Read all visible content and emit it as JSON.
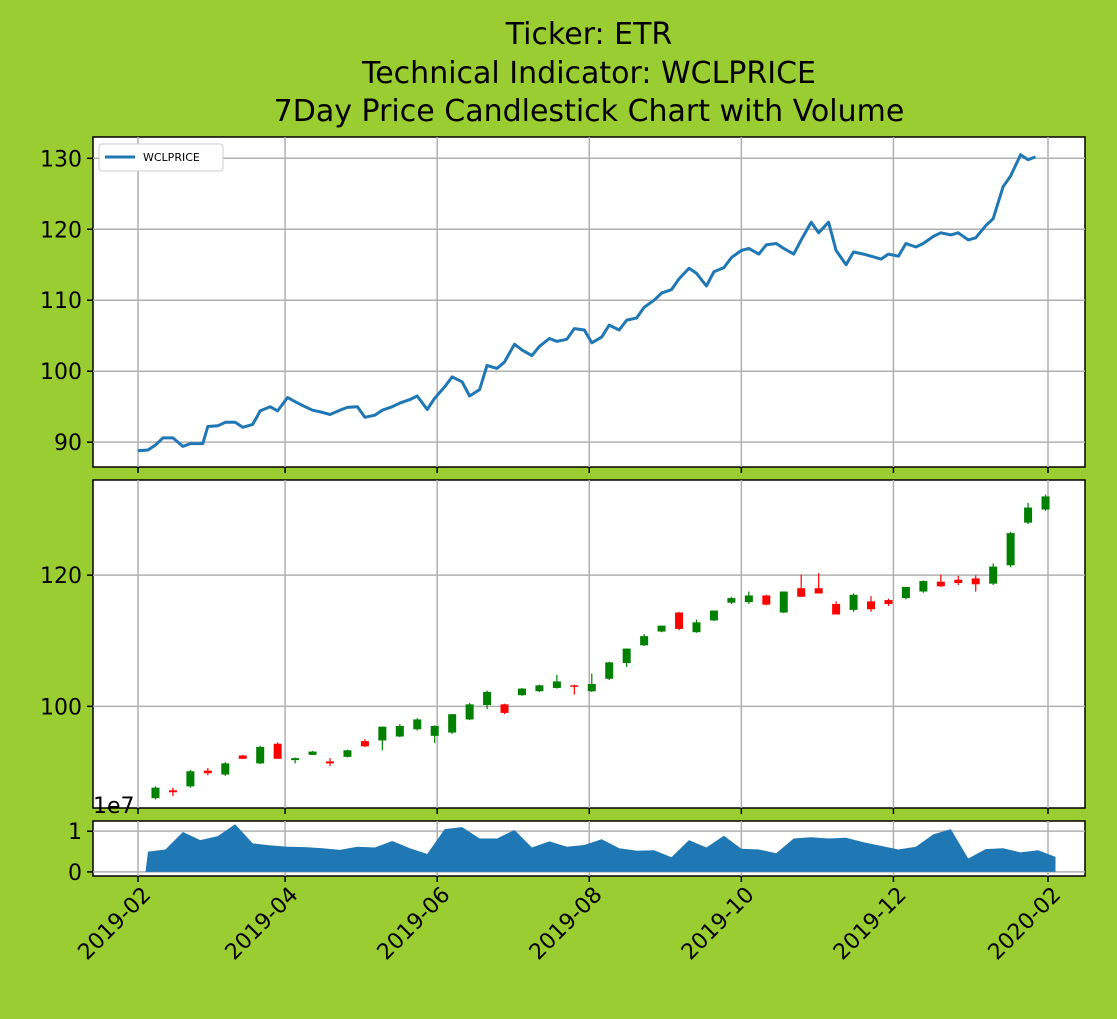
{
  "title_lines": [
    "Ticker: ETR",
    "Technical Indicator: WCLPRICE",
    "7Day Price Candlestick Chart with Volume"
  ],
  "colors": {
    "background": "#9acd32",
    "line": "#1f77b4",
    "up": "#008000",
    "down": "#ff0000",
    "volume": "#1f77b4"
  },
  "chart_data": [
    {
      "type": "line",
      "panel": "indicator",
      "legend": {
        "label": "WCLPRICE",
        "placement": "upper-left"
      },
      "x_axis": "date",
      "ylim": [
        86.5,
        133
      ],
      "yticks": [
        90,
        100,
        110,
        120,
        130
      ],
      "grid": true,
      "points": [
        [
          "2019-02-01",
          88.8
        ],
        [
          "2019-02-05",
          88.9
        ],
        [
          "2019-02-08",
          89.6
        ],
        [
          "2019-02-11",
          90.6
        ],
        [
          "2019-02-15",
          90.6
        ],
        [
          "2019-02-19",
          89.4
        ],
        [
          "2019-02-22",
          89.8
        ],
        [
          "2019-02-27",
          89.8
        ],
        [
          "2019-03-01",
          92.2
        ],
        [
          "2019-03-05",
          92.3
        ],
        [
          "2019-03-08",
          92.8
        ],
        [
          "2019-03-12",
          92.8
        ],
        [
          "2019-03-15",
          92.1
        ],
        [
          "2019-03-19",
          92.5
        ],
        [
          "2019-03-22",
          94.4
        ],
        [
          "2019-03-26",
          95.0
        ],
        [
          "2019-03-29",
          94.4
        ],
        [
          "2019-04-02",
          96.3
        ],
        [
          "2019-04-05",
          95.7
        ],
        [
          "2019-04-09",
          95.0
        ],
        [
          "2019-04-12",
          94.5
        ],
        [
          "2019-04-16",
          94.2
        ],
        [
          "2019-04-19",
          93.9
        ],
        [
          "2019-04-23",
          94.5
        ],
        [
          "2019-04-26",
          94.9
        ],
        [
          "2019-04-30",
          95.0
        ],
        [
          "2019-05-03",
          93.5
        ],
        [
          "2019-05-07",
          93.8
        ],
        [
          "2019-05-10",
          94.5
        ],
        [
          "2019-05-14",
          95.0
        ],
        [
          "2019-05-17",
          95.5
        ],
        [
          "2019-05-21",
          96.0
        ],
        [
          "2019-05-24",
          96.5
        ],
        [
          "2019-05-28",
          94.6
        ],
        [
          "2019-05-31",
          96.2
        ],
        [
          "2019-06-04",
          97.8
        ],
        [
          "2019-06-07",
          99.2
        ],
        [
          "2019-06-11",
          98.5
        ],
        [
          "2019-06-14",
          96.5
        ],
        [
          "2019-06-18",
          97.4
        ],
        [
          "2019-06-21",
          100.8
        ],
        [
          "2019-06-25",
          100.4
        ],
        [
          "2019-06-28",
          101.3
        ],
        [
          "2019-07-02",
          103.8
        ],
        [
          "2019-07-05",
          103.0
        ],
        [
          "2019-07-09",
          102.2
        ],
        [
          "2019-07-12",
          103.5
        ],
        [
          "2019-07-16",
          104.6
        ],
        [
          "2019-07-19",
          104.2
        ],
        [
          "2019-07-23",
          104.5
        ],
        [
          "2019-07-26",
          106.0
        ],
        [
          "2019-07-30",
          105.8
        ],
        [
          "2019-08-02",
          104.0
        ],
        [
          "2019-08-06",
          104.8
        ],
        [
          "2019-08-09",
          106.5
        ],
        [
          "2019-08-13",
          105.8
        ],
        [
          "2019-08-16",
          107.2
        ],
        [
          "2019-08-20",
          107.5
        ],
        [
          "2019-08-23",
          109.0
        ],
        [
          "2019-08-27",
          110.0
        ],
        [
          "2019-08-30",
          111.0
        ],
        [
          "2019-09-03",
          111.5
        ],
        [
          "2019-09-06",
          113.0
        ],
        [
          "2019-09-10",
          114.5
        ],
        [
          "2019-09-13",
          113.8
        ],
        [
          "2019-09-17",
          112.0
        ],
        [
          "2019-09-20",
          114.0
        ],
        [
          "2019-09-24",
          114.6
        ],
        [
          "2019-09-27",
          116.0
        ],
        [
          "2019-10-01",
          117.0
        ],
        [
          "2019-10-04",
          117.3
        ],
        [
          "2019-10-08",
          116.5
        ],
        [
          "2019-10-11",
          117.8
        ],
        [
          "2019-10-15",
          118.0
        ],
        [
          "2019-10-18",
          117.3
        ],
        [
          "2019-10-22",
          116.5
        ],
        [
          "2019-10-25",
          118.5
        ],
        [
          "2019-10-29",
          121.0
        ],
        [
          "2019-11-01",
          119.5
        ],
        [
          "2019-11-05",
          121.0
        ],
        [
          "2019-11-08",
          117.0
        ],
        [
          "2019-11-12",
          115.0
        ],
        [
          "2019-11-15",
          116.8
        ],
        [
          "2019-11-19",
          116.5
        ],
        [
          "2019-11-22",
          116.2
        ],
        [
          "2019-11-26",
          115.8
        ],
        [
          "2019-11-29",
          116.5
        ],
        [
          "2019-12-03",
          116.2
        ],
        [
          "2019-12-06",
          118.0
        ],
        [
          "2019-12-10",
          117.5
        ],
        [
          "2019-12-13",
          118.0
        ],
        [
          "2019-12-17",
          119.0
        ],
        [
          "2019-12-20",
          119.5
        ],
        [
          "2019-12-24",
          119.2
        ],
        [
          "2019-12-27",
          119.5
        ],
        [
          "2019-12-31",
          118.5
        ],
        [
          "2020-01-03",
          118.8
        ],
        [
          "2020-01-07",
          120.5
        ],
        [
          "2020-01-10",
          121.5
        ],
        [
          "2020-01-14",
          126.0
        ],
        [
          "2020-01-17",
          127.5
        ],
        [
          "2020-01-21",
          130.5
        ],
        [
          "2020-01-24",
          129.8
        ],
        [
          "2020-01-27",
          130.2
        ]
      ]
    },
    {
      "type": "candlestick",
      "panel": "price",
      "x_axis": "date",
      "ylim": [
        84.5,
        134.5
      ],
      "yticks": [
        100,
        120
      ],
      "grid": true,
      "candles": [
        [
          "2019-02-04",
          86.0,
          87.8,
          85.8,
          87.6
        ],
        [
          "2019-02-11",
          87.2,
          87.6,
          86.3,
          86.9
        ],
        [
          "2019-02-18",
          87.8,
          90.3,
          87.6,
          90.1
        ],
        [
          "2019-02-25",
          90.2,
          90.6,
          89.5,
          89.8
        ],
        [
          "2019-03-04",
          89.6,
          91.5,
          89.4,
          91.3
        ],
        [
          "2019-03-11",
          92.5,
          92.6,
          92.0,
          92.0
        ],
        [
          "2019-03-18",
          91.3,
          94.0,
          91.2,
          93.8
        ],
        [
          "2019-03-25",
          94.3,
          94.5,
          92.0,
          92.0
        ],
        [
          "2019-04-01",
          91.8,
          92.2,
          91.3,
          92.1
        ],
        [
          "2019-04-08",
          92.6,
          93.2,
          92.6,
          93.1
        ],
        [
          "2019-04-15",
          91.6,
          92.1,
          90.9,
          91.3
        ],
        [
          "2019-04-22",
          92.3,
          93.4,
          92.2,
          93.3
        ],
        [
          "2019-04-29",
          94.7,
          95.0,
          93.8,
          93.9
        ],
        [
          "2019-05-06",
          94.8,
          96.9,
          93.3,
          96.9
        ],
        [
          "2019-05-13",
          95.4,
          97.3,
          95.3,
          97.0
        ],
        [
          "2019-05-20",
          96.5,
          98.2,
          96.3,
          98.0
        ],
        [
          "2019-05-27",
          95.5,
          97.1,
          94.4,
          97.0
        ],
        [
          "2019-06-03",
          96.0,
          98.8,
          95.8,
          98.8
        ],
        [
          "2019-06-10",
          98.0,
          100.5,
          97.9,
          100.3
        ],
        [
          "2019-06-17",
          100.2,
          102.4,
          99.6,
          102.2
        ],
        [
          "2019-06-24",
          100.3,
          100.4,
          98.8,
          99.0
        ],
        [
          "2019-07-01",
          101.7,
          102.8,
          101.6,
          102.7
        ],
        [
          "2019-07-08",
          102.3,
          103.3,
          102.2,
          103.2
        ],
        [
          "2019-07-15",
          102.8,
          104.8,
          102.7,
          103.8
        ],
        [
          "2019-07-22",
          103.2,
          103.3,
          101.8,
          103.0
        ],
        [
          "2019-07-29",
          102.3,
          105.0,
          102.2,
          103.4
        ],
        [
          "2019-08-05",
          104.2,
          106.8,
          104.0,
          106.7
        ],
        [
          "2019-08-12",
          106.6,
          108.8,
          106.0,
          108.8
        ],
        [
          "2019-08-19",
          109.3,
          111.0,
          109.2,
          110.7
        ],
        [
          "2019-08-26",
          111.4,
          112.0,
          111.3,
          112.3
        ],
        [
          "2019-09-02",
          114.3,
          114.4,
          111.6,
          111.8
        ],
        [
          "2019-09-09",
          111.3,
          113.2,
          111.2,
          112.8
        ],
        [
          "2019-09-16",
          113.1,
          114.6,
          113.0,
          114.6
        ],
        [
          "2019-09-23",
          115.8,
          116.7,
          115.6,
          116.5
        ],
        [
          "2019-09-30",
          115.9,
          117.5,
          115.6,
          116.9
        ],
        [
          "2019-10-07",
          116.9,
          117.0,
          115.4,
          115.5
        ],
        [
          "2019-10-14",
          114.3,
          117.4,
          114.2,
          117.5
        ],
        [
          "2019-10-21",
          118.0,
          120.1,
          116.7,
          116.7
        ],
        [
          "2019-10-28",
          118.0,
          120.3,
          117.2,
          117.2
        ],
        [
          "2019-11-04",
          115.6,
          116.0,
          114.0,
          114.0
        ],
        [
          "2019-11-11",
          114.7,
          117.2,
          114.4,
          117.0
        ],
        [
          "2019-11-18",
          116.0,
          116.8,
          114.4,
          114.8
        ],
        [
          "2019-11-25",
          116.2,
          116.4,
          115.3,
          115.6
        ],
        [
          "2019-12-02",
          116.5,
          118.2,
          116.3,
          118.2
        ],
        [
          "2019-12-09",
          117.5,
          119.2,
          117.3,
          119.1
        ],
        [
          "2019-12-16",
          119.0,
          120.1,
          118.2,
          118.3
        ],
        [
          "2019-12-23",
          119.3,
          119.9,
          118.5,
          118.8
        ],
        [
          "2019-12-30",
          119.5,
          120.0,
          117.5,
          118.6
        ],
        [
          "2020-01-06",
          118.7,
          121.8,
          118.5,
          121.3
        ],
        [
          "2020-01-13",
          121.5,
          126.6,
          121.2,
          126.4
        ],
        [
          "2020-01-20",
          128.0,
          131.0,
          127.8,
          130.3
        ],
        [
          "2020-01-27",
          130.0,
          132.3,
          129.8,
          132.0
        ]
      ]
    },
    {
      "type": "area",
      "panel": "volume",
      "x_axis": "date",
      "ylim": [
        -0.1,
        1.25
      ],
      "yticks": [
        0,
        1
      ],
      "offset_label": "1e7",
      "grid": true,
      "points": [
        [
          "2019-02-04",
          0.0
        ],
        [
          "2019-02-05",
          0.5
        ],
        [
          "2019-02-12",
          0.55
        ],
        [
          "2019-02-19",
          0.98
        ],
        [
          "2019-02-26",
          0.78
        ],
        [
          "2019-03-05",
          0.88
        ],
        [
          "2019-03-12",
          1.17
        ],
        [
          "2019-03-19",
          0.7
        ],
        [
          "2019-03-26",
          0.65
        ],
        [
          "2019-04-02",
          0.62
        ],
        [
          "2019-04-09",
          0.61
        ],
        [
          "2019-04-16",
          0.58
        ],
        [
          "2019-04-23",
          0.54
        ],
        [
          "2019-04-30",
          0.62
        ],
        [
          "2019-05-07",
          0.6
        ],
        [
          "2019-05-14",
          0.76
        ],
        [
          "2019-05-21",
          0.58
        ],
        [
          "2019-05-28",
          0.44
        ],
        [
          "2019-06-04",
          1.05
        ],
        [
          "2019-06-11",
          1.1
        ],
        [
          "2019-06-18",
          0.82
        ],
        [
          "2019-06-25",
          0.82
        ],
        [
          "2019-07-02",
          1.03
        ],
        [
          "2019-07-09",
          0.6
        ],
        [
          "2019-07-16",
          0.75
        ],
        [
          "2019-07-23",
          0.62
        ],
        [
          "2019-07-30",
          0.66
        ],
        [
          "2019-08-06",
          0.8
        ],
        [
          "2019-08-13",
          0.58
        ],
        [
          "2019-08-20",
          0.52
        ],
        [
          "2019-08-27",
          0.53
        ],
        [
          "2019-09-03",
          0.36
        ],
        [
          "2019-09-10",
          0.78
        ],
        [
          "2019-09-17",
          0.6
        ],
        [
          "2019-09-24",
          0.89
        ],
        [
          "2019-10-01",
          0.57
        ],
        [
          "2019-10-08",
          0.55
        ],
        [
          "2019-10-15",
          0.46
        ],
        [
          "2019-10-22",
          0.82
        ],
        [
          "2019-10-29",
          0.85
        ],
        [
          "2019-11-05",
          0.82
        ],
        [
          "2019-11-12",
          0.84
        ],
        [
          "2019-11-19",
          0.73
        ],
        [
          "2019-11-26",
          0.64
        ],
        [
          "2019-12-03",
          0.55
        ],
        [
          "2019-12-10",
          0.62
        ],
        [
          "2019-12-17",
          0.92
        ],
        [
          "2019-12-24",
          1.05
        ],
        [
          "2019-12-31",
          0.33
        ],
        [
          "2020-01-07",
          0.56
        ],
        [
          "2020-01-14",
          0.58
        ],
        [
          "2020-01-21",
          0.48
        ],
        [
          "2020-01-28",
          0.53
        ],
        [
          "2020-02-04",
          0.37
        ],
        [
          "2020-02-04",
          0.0
        ]
      ]
    }
  ],
  "x_ticks": [
    "2019-02",
    "2019-04",
    "2019-06",
    "2019-08",
    "2019-10",
    "2019-12",
    "2020-02"
  ]
}
